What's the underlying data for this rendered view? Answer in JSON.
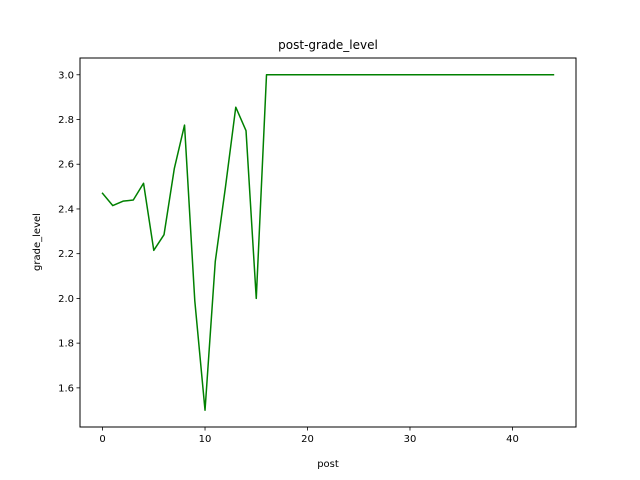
{
  "chart_data": {
    "type": "line",
    "title": "post-grade_level",
    "xlabel": "post",
    "ylabel": "grade_level",
    "xlim": [
      -2.2,
      46.2
    ],
    "ylim": [
      1.425,
      3.075
    ],
    "xticks": [
      0,
      10,
      20,
      30,
      40
    ],
    "yticks": [
      1.6,
      1.8,
      2.0,
      2.2,
      2.4,
      2.6,
      2.8,
      3.0
    ],
    "ytick_labels": [
      "1.6",
      "1.8",
      "2.0",
      "2.2",
      "2.4",
      "2.6",
      "2.8",
      "3.0"
    ],
    "grid": false,
    "series": [
      {
        "color": "#008000",
        "x": [
          0,
          1,
          2,
          3,
          4,
          5,
          6,
          7,
          8,
          9,
          10,
          11,
          12,
          13,
          14,
          15,
          16,
          17,
          18,
          19,
          20,
          21,
          22,
          23,
          24,
          25,
          26,
          27,
          28,
          29,
          30,
          31,
          32,
          33,
          34,
          35,
          36,
          37,
          38,
          39,
          40,
          41,
          42,
          43,
          44
        ],
        "y": [
          2.47,
          2.415,
          2.435,
          2.44,
          2.515,
          2.215,
          2.285,
          2.58,
          2.775,
          1.99,
          1.5,
          2.165,
          2.5,
          2.855,
          2.75,
          2.0,
          3.0,
          3.0,
          3.0,
          3.0,
          3.0,
          3.0,
          3.0,
          3.0,
          3.0,
          3.0,
          3.0,
          3.0,
          3.0,
          3.0,
          3.0,
          3.0,
          3.0,
          3.0,
          3.0,
          3.0,
          3.0,
          3.0,
          3.0,
          3.0,
          3.0,
          3.0,
          3.0,
          3.0,
          3.0
        ]
      }
    ]
  }
}
